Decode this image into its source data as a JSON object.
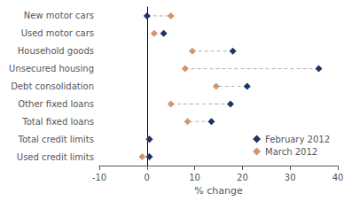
{
  "chart_data": {
    "type": "dumbbell",
    "orientation": "horizontal",
    "categories": [
      "New motor cars",
      "Used motor cars",
      "Household goods",
      "Unsecured housing",
      "Debt consolidation",
      "Other fixed loans",
      "Total fixed loans",
      "Total credit limits",
      "Used credit limits"
    ],
    "series": [
      {
        "name": "February 2012",
        "color": "#1f3368",
        "marker": "diamond",
        "values": [
          0.0,
          3.5,
          18.0,
          36.0,
          21.0,
          17.5,
          13.5,
          0.5,
          0.5
        ]
      },
      {
        "name": "March 2012",
        "color": "#d4956a",
        "marker": "diamond",
        "values": [
          5.0,
          1.5,
          9.5,
          8.0,
          14.5,
          5.0,
          8.5,
          0.5,
          -1.0
        ]
      }
    ],
    "line_style": "dashed",
    "xlabel": "% change",
    "xlim": [
      -10,
      40
    ],
    "xticks": [
      -10,
      0,
      10,
      20,
      30,
      40
    ],
    "legend": "lower right",
    "grid": false
  }
}
